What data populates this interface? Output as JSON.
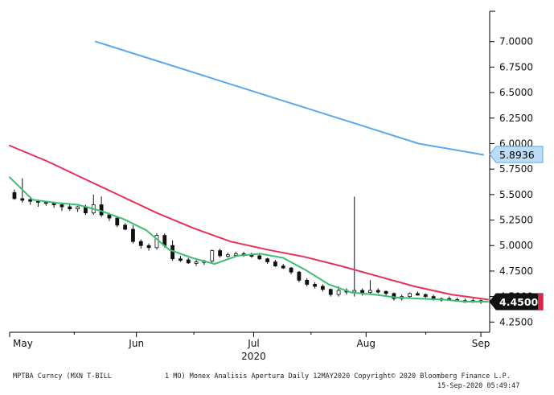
{
  "chart_data": {
    "type": "line",
    "title": "",
    "xlabel": "2020",
    "ylabel": "",
    "x_ticks": [
      "May",
      "Jun",
      "Jul",
      "Aug",
      "Sep"
    ],
    "y_ticks": [
      "7.0000",
      "6.7500",
      "6.5000",
      "6.2500",
      "6.0000",
      "5.7500",
      "5.5000",
      "5.2500",
      "5.0000",
      "4.7500",
      "4.5000",
      "4.2500"
    ],
    "ylim": [
      4.15,
      7.25
    ],
    "last_value_labels": [
      {
        "text": "5.8936",
        "value": 5.8936,
        "color": "#5aa9ef"
      },
      {
        "text": "4.4500",
        "value": 4.45,
        "color": "#d9264d"
      }
    ],
    "series": [
      {
        "kind": "ohlc",
        "color": "#111111",
        "values": [
          [
            5.52,
            5.55,
            5.45,
            5.46
          ],
          [
            5.46,
            5.66,
            5.42,
            5.45
          ],
          [
            5.45,
            5.48,
            5.4,
            5.44
          ],
          [
            5.44,
            5.45,
            5.38,
            5.43
          ],
          [
            5.43,
            5.44,
            5.39,
            5.42
          ],
          [
            5.42,
            5.43,
            5.37,
            5.4
          ],
          [
            5.4,
            5.41,
            5.34,
            5.38
          ],
          [
            5.38,
            5.4,
            5.34,
            5.36
          ],
          [
            5.36,
            5.39,
            5.33,
            5.38
          ],
          [
            5.38,
            5.4,
            5.3,
            5.32
          ],
          [
            5.32,
            5.5,
            5.3,
            5.4
          ],
          [
            5.4,
            5.48,
            5.28,
            5.3
          ],
          [
            5.3,
            5.32,
            5.24,
            5.27
          ],
          [
            5.27,
            5.28,
            5.18,
            5.2
          ],
          [
            5.2,
            5.22,
            5.15,
            5.16
          ],
          [
            5.16,
            5.2,
            5.02,
            5.04
          ],
          [
            5.04,
            5.06,
            4.97,
            5.0
          ],
          [
            5.0,
            5.02,
            4.95,
            4.98
          ],
          [
            4.98,
            5.12,
            4.96,
            5.1
          ],
          [
            5.1,
            5.12,
            4.98,
            5.0
          ],
          [
            5.0,
            5.05,
            4.85,
            4.87
          ],
          [
            4.87,
            4.9,
            4.84,
            4.86
          ],
          [
            4.86,
            4.88,
            4.82,
            4.83
          ],
          [
            4.83,
            4.86,
            4.8,
            4.84
          ],
          [
            4.84,
            4.86,
            4.81,
            4.85
          ],
          [
            4.85,
            4.96,
            4.83,
            4.95
          ],
          [
            4.95,
            4.97,
            4.88,
            4.9
          ],
          [
            4.9,
            4.93,
            4.88,
            4.91
          ],
          [
            4.91,
            4.94,
            4.89,
            4.92
          ],
          [
            4.92,
            4.94,
            4.89,
            4.91
          ],
          [
            4.91,
            4.93,
            4.88,
            4.9
          ],
          [
            4.9,
            4.92,
            4.86,
            4.87
          ],
          [
            4.87,
            4.88,
            4.82,
            4.84
          ],
          [
            4.84,
            4.86,
            4.79,
            4.8
          ],
          [
            4.8,
            4.82,
            4.77,
            4.78
          ],
          [
            4.78,
            4.79,
            4.72,
            4.74
          ],
          [
            4.74,
            4.75,
            4.64,
            4.66
          ],
          [
            4.66,
            4.68,
            4.6,
            4.62
          ],
          [
            4.62,
            4.64,
            4.58,
            4.6
          ],
          [
            4.6,
            4.62,
            4.55,
            4.57
          ],
          [
            4.57,
            4.58,
            4.5,
            4.52
          ],
          [
            4.52,
            4.6,
            4.5,
            4.56
          ],
          [
            4.56,
            4.58,
            4.52,
            4.55
          ],
          [
            4.55,
            5.48,
            4.5,
            4.56
          ],
          [
            4.56,
            4.58,
            4.51,
            4.54
          ],
          [
            4.54,
            4.66,
            4.52,
            4.56
          ],
          [
            4.56,
            4.58,
            4.53,
            4.55
          ],
          [
            4.55,
            4.56,
            4.5,
            4.53
          ],
          [
            4.53,
            4.54,
            4.46,
            4.48
          ],
          [
            4.48,
            4.52,
            4.46,
            4.5
          ],
          [
            4.5,
            4.54,
            4.48,
            4.53
          ],
          [
            4.53,
            4.55,
            4.51,
            4.52
          ],
          [
            4.52,
            4.53,
            4.48,
            4.5
          ],
          [
            4.5,
            4.52,
            4.46,
            4.47
          ],
          [
            4.47,
            4.49,
            4.45,
            4.48
          ],
          [
            4.48,
            4.5,
            4.46,
            4.47
          ],
          [
            4.47,
            4.49,
            4.45,
            4.46
          ],
          [
            4.46,
            4.48,
            4.44,
            4.46
          ],
          [
            4.46,
            4.48,
            4.44,
            4.46
          ],
          [
            4.46,
            4.47,
            4.43,
            4.45
          ]
        ]
      },
      {
        "kind": "line",
        "color": "#5aa9ef",
        "x_start": 0.18,
        "x_end": 0.99,
        "values": [
          7.0,
          6.8,
          6.6,
          6.4,
          6.2,
          6.0,
          5.89
        ]
      },
      {
        "kind": "line",
        "color": "#e4305a",
        "x_start": 0.0,
        "x_end": 1.0,
        "values": [
          5.98,
          5.83,
          5.66,
          5.49,
          5.32,
          5.17,
          5.04,
          4.96,
          4.89,
          4.8,
          4.7,
          4.6,
          4.52,
          4.47
        ]
      },
      {
        "kind": "line",
        "color": "#3dbf73",
        "x_start": 0.0,
        "x_end": 1.0,
        "values": [
          5.67,
          5.45,
          5.42,
          5.4,
          5.34,
          5.26,
          5.15,
          4.96,
          4.88,
          4.82,
          4.9,
          4.92,
          4.88,
          4.76,
          4.62,
          4.54,
          4.52,
          4.49,
          4.48,
          4.47,
          4.45,
          4.45
        ]
      }
    ]
  },
  "footer": {
    "left": "MPTBA Curncy (MXN T-BILL",
    "middle": "1 MO) Monex Analisis Apertura  Daily 12MAY2020 Copyright© 2020 Bloomberg Finance L.P.",
    "right": "15-Sep-2020 05:49:47"
  }
}
